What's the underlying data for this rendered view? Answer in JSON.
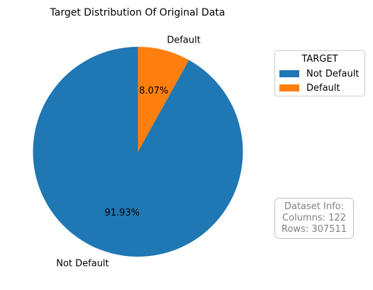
{
  "chart_data": {
    "type": "pie",
    "title": "Target Distribution Of Original Data",
    "slices": [
      {
        "label": "Not Default",
        "value": 91.93,
        "pct_label": "91.93%",
        "color": "#1f77b4"
      },
      {
        "label": "Default",
        "value": 8.07,
        "pct_label": "8.07%",
        "color": "#ff7f0e"
      }
    ],
    "start_angle": "top, counterclockwise",
    "legend": {
      "title": "TARGET",
      "placement": "right-top",
      "entries": [
        "Not Default",
        "Default"
      ]
    }
  },
  "info": {
    "line1": "Dataset Info:",
    "line2": "Columns: 122",
    "line3": "Rows: 307511"
  }
}
